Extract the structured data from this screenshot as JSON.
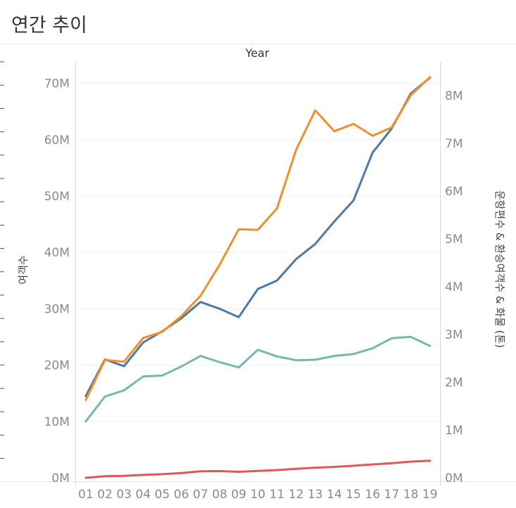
{
  "page": {
    "title": "연간 추이"
  },
  "chart_data": {
    "type": "line",
    "x_header": "Year",
    "categories": [
      "01",
      "02",
      "03",
      "04",
      "05",
      "06",
      "07",
      "08",
      "09",
      "10",
      "11",
      "12",
      "13",
      "14",
      "15",
      "16",
      "17",
      "18",
      "19"
    ],
    "left_axis": {
      "label": "여객수",
      "range": [
        0,
        75000000
      ],
      "ticks": [
        {
          "value": 0,
          "label": "0M"
        },
        {
          "value": 10000000,
          "label": "10M"
        },
        {
          "value": 20000000,
          "label": "20M"
        },
        {
          "value": 30000000,
          "label": "30M"
        },
        {
          "value": 40000000,
          "label": "40M"
        },
        {
          "value": 50000000,
          "label": "50M"
        },
        {
          "value": 60000000,
          "label": "60M"
        },
        {
          "value": 70000000,
          "label": "70M"
        }
      ]
    },
    "right_axis": {
      "label": "운항편수 & 환승여객수 & 화물 (톤)",
      "range": [
        0,
        8800000
      ],
      "ticks": [
        {
          "value": 0,
          "label": "0M"
        },
        {
          "value": 1000000,
          "label": "1M"
        },
        {
          "value": 2000000,
          "label": "2M"
        },
        {
          "value": 3000000,
          "label": "3M"
        },
        {
          "value": 4000000,
          "label": "4M"
        },
        {
          "value": 5000000,
          "label": "5M"
        },
        {
          "value": 6000000,
          "label": "6M"
        },
        {
          "value": 7000000,
          "label": "7M"
        },
        {
          "value": 8000000,
          "label": "8M"
        }
      ]
    },
    "series": [
      {
        "name": "blue-series",
        "axis": "left",
        "color": "#4e79a7",
        "values": [
          14500000,
          21000000,
          19800000,
          24000000,
          26000000,
          28300000,
          31200000,
          30000000,
          28500000,
          33500000,
          35000000,
          38800000,
          41500000,
          45500000,
          49200000,
          57700000,
          62000000,
          68200000,
          71000000
        ]
      },
      {
        "name": "orange-series",
        "axis": "left",
        "color": "#f28e2b",
        "values": [
          13800000,
          20900000,
          20600000,
          24800000,
          25900000,
          28700000,
          32300000,
          37800000,
          44100000,
          44000000,
          47800000,
          58200000,
          65200000,
          61500000,
          62800000,
          60700000,
          62200000,
          67900000,
          71100000
        ]
      },
      {
        "name": "teal-series",
        "axis": "right",
        "color": "#76b7b2",
        "values": [
          1180000,
          1700000,
          1830000,
          2120000,
          2140000,
          2330000,
          2550000,
          2420000,
          2310000,
          2680000,
          2540000,
          2460000,
          2470000,
          2550000,
          2590000,
          2710000,
          2920000,
          2950000,
          2760000
        ]
      },
      {
        "name": "red-series",
        "axis": "right",
        "color": "#e15759",
        "values": [
          0,
          32000,
          39000,
          60000,
          75000,
          100000,
          137000,
          140000,
          125000,
          142000,
          162000,
          187000,
          212000,
          228000,
          251000,
          279000,
          306000,
          338000,
          356000
        ]
      }
    ]
  }
}
